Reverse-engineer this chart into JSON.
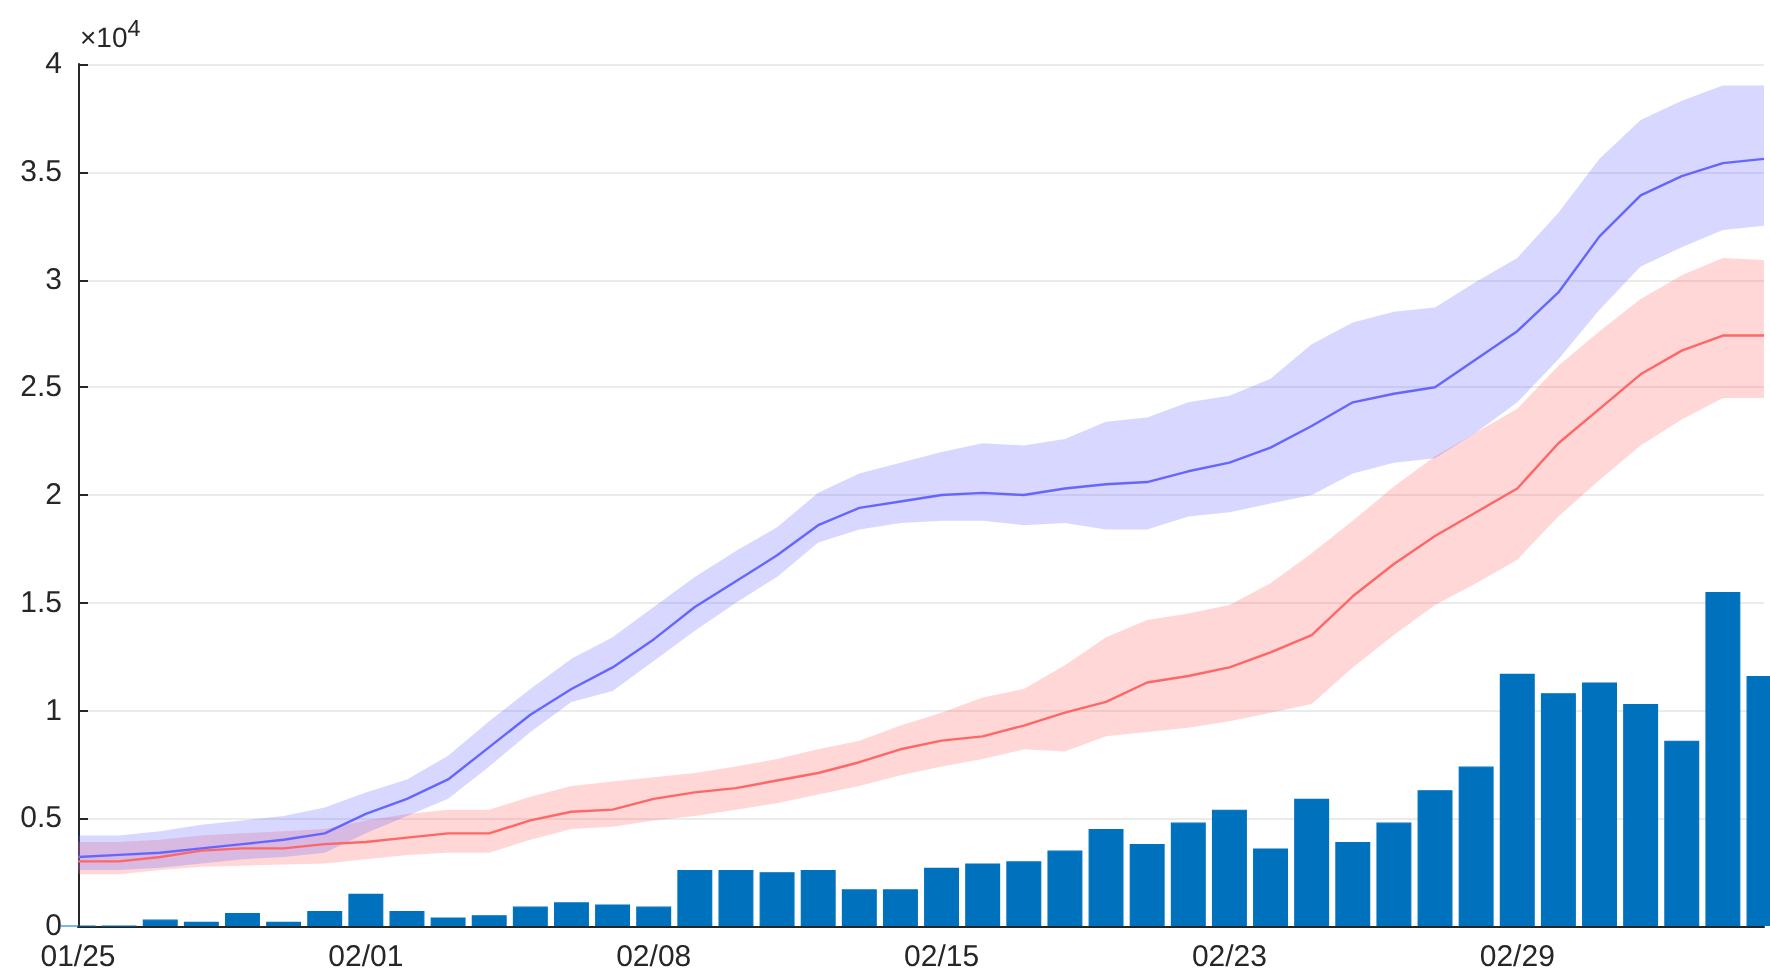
{
  "chart_data": {
    "type": "line",
    "categories": [
      "01/25",
      null,
      null,
      null,
      null,
      null,
      null,
      "02/01",
      null,
      null,
      null,
      null,
      null,
      null,
      "02/08",
      null,
      null,
      null,
      null,
      null,
      null,
      "02/15",
      null,
      null,
      null,
      null,
      null,
      null,
      "02/23",
      null,
      null,
      null,
      null,
      null,
      null,
      "02/29",
      null,
      null,
      null,
      null,
      null,
      null
    ],
    "series": [
      {
        "type": "bar",
        "color": "#0072bd",
        "values": [
          0,
          0,
          0.03,
          0.02,
          0.06,
          0.02,
          0.07,
          0.15,
          0.07,
          0.04,
          0.05,
          0.09,
          0.11,
          0.1,
          0.09,
          0.26,
          0.26,
          0.25,
          0.26,
          0.17,
          0.17,
          0.27,
          0.29,
          0.3,
          0.35,
          0.45,
          0.38,
          0.48,
          0.54,
          0.36,
          0.59,
          0.39,
          0.48,
          0.63,
          0.74,
          1.17,
          1.08,
          1.13,
          1.03,
          0.86,
          1.55,
          1.16
        ]
      },
      {
        "color": "#ff6666",
        "values": [
          0.3,
          0.3,
          0.32,
          0.35,
          0.36,
          0.36,
          0.38,
          0.39,
          0.41,
          0.43,
          0.43,
          0.49,
          0.53,
          0.54,
          0.59,
          0.62,
          0.64,
          0.675,
          0.71,
          0.76,
          0.82,
          0.86,
          0.88,
          0.93,
          0.99,
          1.04,
          1.13,
          1.16,
          1.2,
          1.27,
          1.35,
          1.53,
          1.68,
          1.81,
          1.92,
          2.03,
          2.24,
          2.4,
          2.56,
          2.67,
          2.74,
          2.74
        ],
        "lower": [
          0.24,
          0.24,
          0.26,
          0.275,
          0.28,
          0.285,
          0.29,
          0.31,
          0.33,
          0.34,
          0.34,
          0.4,
          0.45,
          0.46,
          0.49,
          0.51,
          0.54,
          0.57,
          0.61,
          0.65,
          0.7,
          0.74,
          0.775,
          0.82,
          0.81,
          0.88,
          0.9,
          0.92,
          0.95,
          0.99,
          1.03,
          1.2,
          1.35,
          1.49,
          1.59,
          1.7,
          1.9,
          2.07,
          2.23,
          2.35,
          2.45,
          2.45
        ],
        "upper": [
          0.39,
          0.39,
          0.4,
          0.42,
          0.43,
          0.44,
          0.45,
          0.49,
          0.52,
          0.54,
          0.54,
          0.6,
          0.65,
          0.67,
          0.69,
          0.71,
          0.74,
          0.775,
          0.82,
          0.86,
          0.93,
          0.99,
          1.06,
          1.1,
          1.21,
          1.34,
          1.42,
          1.45,
          1.49,
          1.59,
          1.73,
          1.88,
          2.04,
          2.18,
          2.29,
          2.4,
          2.6,
          2.76,
          2.91,
          3.02,
          3.1,
          3.09
        ]
      },
      {
        "color": "#6666ff",
        "values": [
          0.32,
          0.33,
          0.34,
          0.36,
          0.38,
          0.4,
          0.43,
          0.52,
          0.59,
          0.68,
          0.83,
          0.98,
          1.1,
          1.2,
          1.33,
          1.48,
          1.6,
          1.72,
          1.86,
          1.94,
          1.97,
          2.0,
          2.01,
          2.0,
          2.03,
          2.05,
          2.06,
          2.11,
          2.15,
          2.22,
          2.32,
          2.43,
          2.47,
          2.5,
          2.63,
          2.76,
          2.94,
          3.2,
          3.39,
          3.48,
          3.54,
          3.56
        ],
        "lower": [
          0.26,
          0.26,
          0.27,
          0.29,
          0.31,
          0.32,
          0.34,
          0.43,
          0.51,
          0.59,
          0.74,
          0.9,
          1.04,
          1.09,
          1.23,
          1.37,
          1.5,
          1.62,
          1.78,
          1.84,
          1.87,
          1.88,
          1.88,
          1.86,
          1.87,
          1.84,
          1.84,
          1.9,
          1.92,
          1.96,
          2.0,
          2.1,
          2.15,
          2.17,
          2.29,
          2.43,
          2.63,
          2.86,
          3.06,
          3.15,
          3.23,
          3.25
        ],
        "upper": [
          0.42,
          0.42,
          0.44,
          0.47,
          0.49,
          0.51,
          0.55,
          0.62,
          0.68,
          0.79,
          0.95,
          1.1,
          1.24,
          1.34,
          1.48,
          1.62,
          1.74,
          1.85,
          2.01,
          2.1,
          2.15,
          2.2,
          2.24,
          2.23,
          2.26,
          2.34,
          2.36,
          2.43,
          2.46,
          2.54,
          2.7,
          2.8,
          2.85,
          2.87,
          2.99,
          3.1,
          3.31,
          3.56,
          3.74,
          3.83,
          3.9,
          3.9
        ]
      }
    ],
    "ylim": [
      0,
      4
    ],
    "yticks": [
      0,
      0.5,
      1,
      1.5,
      2,
      2.5,
      3,
      3.5,
      4
    ],
    "grid": "y",
    "annotations": [
      "×10$^{4}$"
    ]
  }
}
